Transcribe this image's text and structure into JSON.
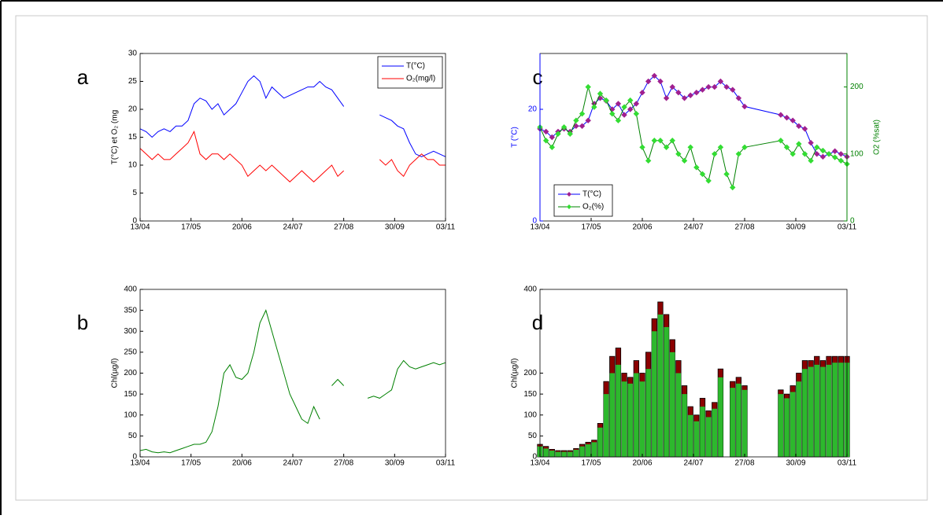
{
  "chart_data": [
    {
      "type": "line",
      "label": "a",
      "ylabel": "T(°C) et O₂ (mg",
      "xlim": [
        "13/04",
        "03/11"
      ],
      "xticks": [
        "13/04",
        "17/05",
        "20/06",
        "24/07",
        "27/08",
        "30/09",
        "03/11"
      ],
      "ylim": [
        0,
        30
      ],
      "yticks": [
        0,
        5,
        10,
        15,
        20,
        25,
        30
      ],
      "legend": "upper right",
      "x": [
        "13/04",
        "17/04",
        "21/04",
        "25/04",
        "29/04",
        "03/05",
        "07/05",
        "11/05",
        "15/05",
        "19/05",
        "23/05",
        "27/05",
        "31/05",
        "04/06",
        "08/06",
        "12/06",
        "16/06",
        "20/06",
        "24/06",
        "28/06",
        "02/07",
        "06/07",
        "10/07",
        "14/07",
        "18/07",
        "22/07",
        "26/07",
        "30/07",
        "03/08",
        "07/08",
        "11/08",
        "15/08",
        "19/08",
        "23/08",
        "27/08",
        "31/08",
        "04/09",
        "08/09",
        "12/09",
        "16/09",
        "20/09",
        "24/09",
        "28/09",
        "02/10",
        "06/10",
        "10/10",
        "14/10",
        "18/10",
        "22/10",
        "26/10",
        "30/10",
        "03/11"
      ],
      "series": [
        {
          "name": "T(°C)",
          "color": "#0000ff",
          "values": [
            16.5,
            16,
            15,
            16,
            16.5,
            16,
            17,
            17,
            18,
            21,
            22,
            21.5,
            20,
            21,
            19,
            20,
            21,
            23,
            25,
            26,
            25,
            22,
            24,
            23,
            22,
            22.5,
            23,
            23.5,
            24,
            24,
            25,
            24,
            23.5,
            22,
            20.5,
            null,
            null,
            null,
            null,
            null,
            19,
            18.5,
            18,
            17,
            16.5,
            14,
            12,
            11.5,
            12,
            12.5,
            12,
            11.5
          ]
        },
        {
          "name": "O₂(mg/l)",
          "color": "#ff0000",
          "values": [
            13,
            12,
            11,
            12,
            11,
            11,
            12,
            13,
            14,
            16,
            12,
            11,
            12,
            12,
            11,
            12,
            11,
            10,
            8,
            9,
            10,
            9,
            10,
            9,
            8,
            7,
            8,
            9,
            8,
            7,
            8,
            9,
            10,
            8,
            9,
            null,
            null,
            null,
            null,
            null,
            11,
            10,
            11,
            9,
            8,
            10,
            11,
            12,
            11,
            11,
            10,
            10
          ]
        }
      ]
    },
    {
      "type": "line",
      "label": "b",
      "ylabel": "Chl(µg/l)",
      "xlim": [
        "13/04",
        "03/11"
      ],
      "xticks": [
        "13/04",
        "17/05",
        "20/06",
        "24/07",
        "27/08",
        "30/09",
        "03/11"
      ],
      "ylim": [
        0,
        400
      ],
      "yticks": [
        0,
        50,
        100,
        150,
        200,
        250,
        300,
        350,
        400
      ],
      "x": [
        "13/04",
        "17/04",
        "21/04",
        "25/04",
        "29/04",
        "03/05",
        "07/05",
        "11/05",
        "15/05",
        "19/05",
        "23/05",
        "27/05",
        "31/05",
        "04/06",
        "08/06",
        "12/06",
        "16/06",
        "20/06",
        "24/06",
        "28/06",
        "02/07",
        "06/07",
        "10/07",
        "14/07",
        "18/07",
        "22/07",
        "26/07",
        "30/07",
        "03/08",
        "07/08",
        "11/08",
        "15/08",
        "19/08",
        "23/08",
        "27/08",
        "31/08",
        "04/09",
        "08/09",
        "12/09",
        "16/09",
        "20/09",
        "24/09",
        "28/09",
        "02/10",
        "06/10",
        "10/10",
        "14/10",
        "18/10",
        "22/10",
        "26/10",
        "30/10",
        "03/11"
      ],
      "series": [
        {
          "color": "#008000",
          "values": [
            15,
            18,
            12,
            10,
            12,
            10,
            15,
            20,
            25,
            30,
            30,
            35,
            60,
            120,
            200,
            220,
            190,
            185,
            200,
            250,
            320,
            350,
            300,
            250,
            200,
            150,
            120,
            90,
            80,
            120,
            90,
            null,
            170,
            185,
            170,
            null,
            null,
            null,
            140,
            145,
            140,
            150,
            160,
            210,
            230,
            215,
            210,
            215,
            220,
            225,
            220,
            225
          ]
        }
      ]
    },
    {
      "type": "line",
      "label": "c",
      "ylabel": "T (°C)",
      "y2label": "O2 (%sat)",
      "ylabel_color": "#0000ff",
      "y2label_color": "#008000",
      "xlim": [
        "13/04",
        "03/11"
      ],
      "xticks": [
        "13/04",
        "17/05",
        "20/06",
        "24/07",
        "27/08",
        "30/09",
        "03/11"
      ],
      "ylim": [
        0,
        30
      ],
      "yticks": [
        0,
        20
      ],
      "y2lim": [
        0,
        250
      ],
      "y2ticks": [
        0,
        100,
        200
      ],
      "legend": "lower left",
      "x": [
        "13/04",
        "17/04",
        "21/04",
        "25/04",
        "29/04",
        "03/05",
        "07/05",
        "11/05",
        "15/05",
        "19/05",
        "23/05",
        "27/05",
        "31/05",
        "04/06",
        "08/06",
        "12/06",
        "16/06",
        "20/06",
        "24/06",
        "28/06",
        "02/07",
        "06/07",
        "10/07",
        "14/07",
        "18/07",
        "22/07",
        "26/07",
        "30/07",
        "03/08",
        "07/08",
        "11/08",
        "15/08",
        "19/08",
        "23/08",
        "27/08",
        "20/09",
        "24/09",
        "28/09",
        "02/10",
        "06/10",
        "10/10",
        "14/10",
        "18/10",
        "22/10",
        "26/10",
        "30/10",
        "03/11"
      ],
      "series": [
        {
          "name": "T(°C)",
          "color": "#0000ff",
          "marker_color": "#a0208f",
          "values": [
            16.5,
            16,
            15,
            16,
            16.5,
            16,
            17,
            17,
            18,
            21,
            22,
            21.5,
            20,
            21,
            19,
            20,
            21,
            23,
            25,
            26,
            25,
            22,
            24,
            23,
            22,
            22.5,
            23,
            23.5,
            24,
            24,
            25,
            24,
            23.5,
            22,
            20.5,
            19,
            18.5,
            18,
            17,
            16.5,
            14,
            12,
            11.5,
            12,
            12.5,
            12,
            11.5
          ]
        },
        {
          "name": "O₂(%)",
          "color": "#008000",
          "marker_color": "#33dd33",
          "axis": "y2",
          "values": [
            140,
            120,
            110,
            130,
            140,
            130,
            150,
            160,
            200,
            170,
            190,
            180,
            160,
            150,
            170,
            180,
            160,
            110,
            90,
            120,
            120,
            110,
            120,
            100,
            90,
            110,
            80,
            70,
            60,
            100,
            110,
            70,
            50,
            100,
            110,
            120,
            110,
            100,
            115,
            100,
            90,
            110,
            105,
            100,
            95,
            90,
            85
          ]
        }
      ]
    },
    {
      "type": "bar",
      "label": "d",
      "ylabel": "Chl(µg/l)",
      "xlim": [
        "13/04",
        "03/11"
      ],
      "xticks": [
        "13/04",
        "17/05",
        "20/06",
        "24/07",
        "27/08",
        "30/09",
        "03/11"
      ],
      "ylim": [
        0,
        400
      ],
      "yticks": [
        0,
        50,
        100,
        150,
        200,
        400
      ],
      "x": [
        "13/04",
        "17/04",
        "21/04",
        "25/04",
        "29/04",
        "03/05",
        "07/05",
        "11/05",
        "15/05",
        "19/05",
        "23/05",
        "27/05",
        "31/05",
        "04/06",
        "08/06",
        "12/06",
        "16/06",
        "20/06",
        "24/06",
        "28/06",
        "02/07",
        "06/07",
        "10/07",
        "14/07",
        "18/07",
        "22/07",
        "26/07",
        "30/07",
        "03/08",
        "07/08",
        "11/08",
        "15/08",
        "19/08",
        "23/08",
        "27/08",
        "31/08",
        "04/09",
        "08/09",
        "12/09",
        "16/09",
        "20/09",
        "24/09",
        "28/09",
        "02/10",
        "06/10",
        "10/10",
        "14/10",
        "18/10",
        "22/10",
        "26/10",
        "30/10",
        "03/11"
      ],
      "series": [
        {
          "color": "#8b0000",
          "values": [
            30,
            25,
            18,
            15,
            15,
            15,
            20,
            30,
            35,
            40,
            80,
            180,
            240,
            260,
            200,
            190,
            230,
            200,
            250,
            330,
            370,
            340,
            280,
            230,
            170,
            120,
            100,
            140,
            110,
            130,
            210,
            null,
            180,
            190,
            170,
            null,
            null,
            null,
            null,
            null,
            160,
            150,
            170,
            200,
            230,
            230,
            240,
            230,
            240,
            240,
            240,
            240
          ]
        },
        {
          "color": "#2db82d",
          "values": [
            25,
            20,
            15,
            12,
            12,
            12,
            17,
            25,
            30,
            35,
            70,
            150,
            200,
            220,
            180,
            175,
            200,
            180,
            210,
            300,
            340,
            310,
            250,
            200,
            150,
            100,
            85,
            120,
            95,
            115,
            190,
            null,
            165,
            175,
            160,
            null,
            null,
            null,
            null,
            null,
            150,
            140,
            155,
            180,
            210,
            215,
            220,
            215,
            220,
            225,
            225,
            225
          ]
        }
      ]
    }
  ]
}
